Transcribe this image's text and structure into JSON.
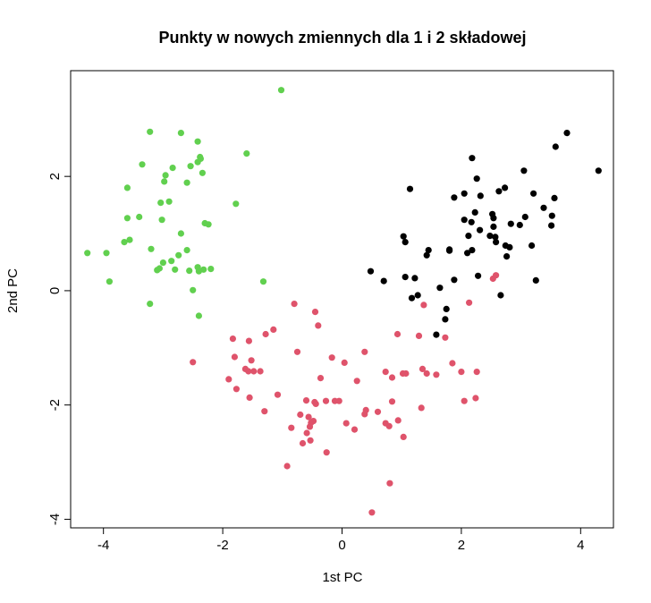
{
  "chart_data": {
    "type": "scatter",
    "title": "Punkty w nowych zmiennych dla 1 i 2 składowej",
    "xlabel": "1st PC",
    "ylabel": "2nd PC",
    "xlim": [
      -4.55,
      4.55
    ],
    "ylim": [
      -4.15,
      3.85
    ],
    "xticks": [
      "-4",
      "-2",
      "0",
      "2",
      "4"
    ],
    "yticks": [
      "-4",
      "-2",
      "0",
      "2"
    ],
    "grid": false,
    "legend": "none",
    "series": [
      {
        "color": "#61D04F",
        "points": [
          [
            -4.27,
            0.66
          ],
          [
            -3.95,
            0.66
          ],
          [
            -3.9,
            0.16
          ],
          [
            -3.65,
            0.85
          ],
          [
            -3.56,
            0.89
          ],
          [
            -3.6,
            1.8
          ],
          [
            -3.6,
            1.27
          ],
          [
            -3.4,
            1.29
          ],
          [
            -3.35,
            2.21
          ],
          [
            -3.22,
            2.78
          ],
          [
            -3.2,
            0.73
          ],
          [
            -3.22,
            -0.23
          ],
          [
            -3.1,
            0.36
          ],
          [
            -3.06,
            0.39
          ],
          [
            -3.04,
            1.54
          ],
          [
            -3.02,
            1.24
          ],
          [
            -3.0,
            0.49
          ],
          [
            -2.98,
            1.91
          ],
          [
            -2.96,
            2.02
          ],
          [
            -2.9,
            1.56
          ],
          [
            -2.84,
            2.15
          ],
          [
            -2.86,
            0.52
          ],
          [
            -2.8,
            0.37
          ],
          [
            -2.74,
            0.62
          ],
          [
            -2.7,
            2.76
          ],
          [
            -2.7,
            1.0
          ],
          [
            -2.6,
            1.89
          ],
          [
            -2.6,
            0.71
          ],
          [
            -2.54,
            2.18
          ],
          [
            -2.56,
            0.35
          ],
          [
            -2.5,
            0.01
          ],
          [
            -2.42,
            2.61
          ],
          [
            -2.42,
            2.25
          ],
          [
            -2.38,
            2.34
          ],
          [
            -2.37,
            2.31
          ],
          [
            -2.4,
            0.34
          ],
          [
            -2.32,
            0.37
          ],
          [
            -2.42,
            0.41
          ],
          [
            -2.4,
            -0.44
          ],
          [
            -2.34,
            2.06
          ],
          [
            -2.3,
            1.18
          ],
          [
            -2.24,
            1.16
          ],
          [
            -2.2,
            0.38
          ],
          [
            -1.78,
            1.52
          ],
          [
            -1.6,
            2.4
          ],
          [
            -1.32,
            0.16
          ],
          [
            -1.02,
            3.51
          ]
        ]
      },
      {
        "color": "#DF536B",
        "points": [
          [
            -2.5,
            -1.25
          ],
          [
            -1.9,
            -1.55
          ],
          [
            -1.83,
            -0.84
          ],
          [
            -1.8,
            -1.16
          ],
          [
            -1.77,
            -1.72
          ],
          [
            -1.62,
            -1.37
          ],
          [
            -1.57,
            -1.41
          ],
          [
            -1.56,
            -0.88
          ],
          [
            -1.55,
            -1.87
          ],
          [
            -1.52,
            -1.22
          ],
          [
            -1.48,
            -1.41
          ],
          [
            -1.37,
            -1.41
          ],
          [
            -1.3,
            -2.11
          ],
          [
            -1.28,
            -0.76
          ],
          [
            -1.15,
            -0.68
          ],
          [
            -1.08,
            -1.82
          ],
          [
            -0.92,
            -3.07
          ],
          [
            -0.85,
            -2.4
          ],
          [
            -0.8,
            -0.23
          ],
          [
            -0.75,
            -1.07
          ],
          [
            -0.7,
            -2.17
          ],
          [
            -0.66,
            -2.67
          ],
          [
            -0.6,
            -1.92
          ],
          [
            -0.59,
            -2.49
          ],
          [
            -0.56,
            -2.21
          ],
          [
            -0.54,
            -2.38
          ],
          [
            -0.53,
            -2.62
          ],
          [
            -0.52,
            -2.31
          ],
          [
            -0.48,
            -2.28
          ],
          [
            -0.46,
            -1.95
          ],
          [
            -0.45,
            -0.37
          ],
          [
            -0.44,
            -1.98
          ],
          [
            -0.4,
            -0.61
          ],
          [
            -0.36,
            -1.53
          ],
          [
            -0.27,
            -1.93
          ],
          [
            -0.26,
            -2.83
          ],
          [
            -0.17,
            -1.17
          ],
          [
            -0.12,
            -1.93
          ],
          [
            -0.05,
            -1.93
          ],
          [
            0.04,
            -1.26
          ],
          [
            0.07,
            -2.32
          ],
          [
            0.21,
            -2.43
          ],
          [
            0.25,
            -1.58
          ],
          [
            0.38,
            -1.07
          ],
          [
            0.4,
            -2.09
          ],
          [
            0.38,
            -2.16
          ],
          [
            0.5,
            -3.88
          ],
          [
            0.6,
            -2.12
          ],
          [
            0.73,
            -2.32
          ],
          [
            0.79,
            -2.37
          ],
          [
            0.73,
            -1.42
          ],
          [
            0.84,
            -1.52
          ],
          [
            0.8,
            -3.37
          ],
          [
            0.84,
            -1.94
          ],
          [
            0.93,
            -0.76
          ],
          [
            0.94,
            -2.27
          ],
          [
            1.02,
            -1.45
          ],
          [
            1.03,
            -2.56
          ],
          [
            1.07,
            -1.45
          ],
          [
            1.29,
            -0.79
          ],
          [
            1.33,
            -2.05
          ],
          [
            1.35,
            -1.37
          ],
          [
            1.37,
            -0.25
          ],
          [
            1.42,
            -1.45
          ],
          [
            1.58,
            -1.47
          ],
          [
            1.73,
            -0.82
          ],
          [
            1.85,
            -1.27
          ],
          [
            2.0,
            -1.42
          ],
          [
            2.05,
            -1.93
          ],
          [
            2.13,
            -0.21
          ],
          [
            2.24,
            -1.88
          ],
          [
            2.26,
            -1.42
          ],
          [
            2.53,
            0.21
          ],
          [
            2.58,
            0.27
          ]
        ]
      },
      {
        "color": "#000000",
        "points": [
          [
            0.48,
            0.34
          ],
          [
            0.7,
            0.17
          ],
          [
            1.03,
            0.95
          ],
          [
            1.06,
            0.85
          ],
          [
            1.06,
            0.24
          ],
          [
            1.14,
            1.78
          ],
          [
            1.17,
            -0.13
          ],
          [
            1.22,
            0.22
          ],
          [
            1.27,
            -0.08
          ],
          [
            1.42,
            0.62
          ],
          [
            1.45,
            0.71
          ],
          [
            1.58,
            -0.77
          ],
          [
            1.64,
            0.05
          ],
          [
            1.73,
            -0.5
          ],
          [
            1.75,
            -0.32
          ],
          [
            1.8,
            0.72
          ],
          [
            1.8,
            0.7
          ],
          [
            1.88,
            0.19
          ],
          [
            1.88,
            1.63
          ],
          [
            2.05,
            1.7
          ],
          [
            2.05,
            1.24
          ],
          [
            2.1,
            0.66
          ],
          [
            2.12,
            0.96
          ],
          [
            2.18,
            2.32
          ],
          [
            2.17,
            1.2
          ],
          [
            2.18,
            0.71
          ],
          [
            2.23,
            1.37
          ],
          [
            2.26,
            1.96
          ],
          [
            2.28,
            0.26
          ],
          [
            2.31,
            1.06
          ],
          [
            2.32,
            1.66
          ],
          [
            2.48,
            0.96
          ],
          [
            2.52,
            1.34
          ],
          [
            2.54,
            1.27
          ],
          [
            2.54,
            1.12
          ],
          [
            2.57,
            0.94
          ],
          [
            2.58,
            0.85
          ],
          [
            2.63,
            1.74
          ],
          [
            2.66,
            -0.08
          ],
          [
            2.73,
            1.8
          ],
          [
            2.74,
            0.79
          ],
          [
            2.76,
            0.6
          ],
          [
            2.81,
            0.76
          ],
          [
            2.83,
            1.17
          ],
          [
            2.98,
            1.15
          ],
          [
            3.05,
            2.1
          ],
          [
            3.07,
            1.29
          ],
          [
            3.18,
            0.79
          ],
          [
            3.21,
            1.7
          ],
          [
            3.25,
            0.18
          ],
          [
            3.38,
            1.45
          ],
          [
            3.51,
            1.14
          ],
          [
            3.52,
            1.31
          ],
          [
            3.56,
            1.62
          ],
          [
            3.58,
            2.52
          ],
          [
            3.77,
            2.76
          ],
          [
            4.3,
            2.1
          ]
        ]
      }
    ]
  }
}
